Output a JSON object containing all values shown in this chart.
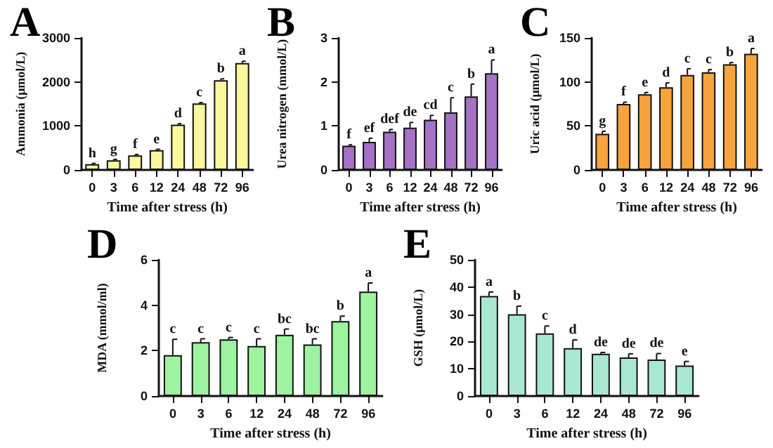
{
  "chart_data": [
    {
      "type": "bar",
      "title": "A",
      "xlabel": "Time after stress (h)",
      "ylabel": "Ammonia (μmol/L)",
      "categories": [
        "0",
        "3",
        "6",
        "12",
        "24",
        "48",
        "72",
        "96"
      ],
      "values": [
        130,
        220,
        330,
        450,
        1030,
        1510,
        2040,
        2430
      ],
      "errors": [
        [
          130,
          150
        ],
        [
          220,
          240
        ],
        [
          330,
          350
        ],
        [
          450,
          470
        ],
        [
          1030,
          1050
        ],
        [
          1510,
          1530
        ],
        [
          2040,
          2070
        ],
        [
          2430,
          2470
        ]
      ],
      "color": "#fbf89c",
      "ylim": [
        0,
        3000
      ],
      "yticks": [
        0,
        1000,
        2000,
        3000
      ],
      "annotations": [
        {
          "text": "h",
          "x": "0",
          "y": 150
        },
        {
          "text": "g",
          "x": "3",
          "y": 240
        },
        {
          "text": "f",
          "x": "6",
          "y": 350
        },
        {
          "text": "e",
          "x": "12",
          "y": 470
        },
        {
          "text": "d",
          "x": "24",
          "y": 1050
        },
        {
          "text": "c",
          "x": "48",
          "y": 1530
        },
        {
          "text": "b",
          "x": "72",
          "y": 2070
        },
        {
          "text": "a",
          "x": "96",
          "y": 2470
        }
      ]
    },
    {
      "type": "bar",
      "title": "B",
      "xlabel": "Time after stress (h)",
      "ylabel": "Urea nitrogen (mmol/L)",
      "categories": [
        "0",
        "3",
        "6",
        "12",
        "24",
        "48",
        "72",
        "96"
      ],
      "values": [
        0.55,
        0.64,
        0.87,
        0.96,
        1.14,
        1.31,
        1.67,
        2.2
      ],
      "errors": [
        [
          0.55,
          0.57
        ],
        [
          0.64,
          0.72
        ],
        [
          0.87,
          0.92
        ],
        [
          0.96,
          1.08
        ],
        [
          1.14,
          1.24
        ],
        [
          1.31,
          1.64
        ],
        [
          1.67,
          1.95
        ],
        [
          2.2,
          2.5
        ]
      ],
      "color": "#a572c4",
      "ylim": [
        0,
        3
      ],
      "yticks": [
        0,
        1,
        2,
        3
      ],
      "annotations": [
        {
          "text": "f",
          "x": "0",
          "y": 0.57
        },
        {
          "text": "ef",
          "x": "3",
          "y": 0.72
        },
        {
          "text": "def",
          "x": "6",
          "y": 0.92
        },
        {
          "text": "de",
          "x": "12",
          "y": 1.08
        },
        {
          "text": "cd",
          "x": "24",
          "y": 1.24
        },
        {
          "text": "c",
          "x": "48",
          "y": 1.64
        },
        {
          "text": "b",
          "x": "72",
          "y": 1.95
        },
        {
          "text": "a",
          "x": "96",
          "y": 2.5
        }
      ]
    },
    {
      "type": "bar",
      "title": "C",
      "xlabel": "Time after stress (h)",
      "ylabel": "Uric acid (μmol/L)",
      "categories": [
        "0",
        "3",
        "6",
        "12",
        "24",
        "48",
        "72",
        "96"
      ],
      "values": [
        41,
        75,
        86,
        94,
        108,
        111,
        120,
        132
      ],
      "errors": [
        [
          41,
          44
        ],
        [
          75,
          77
        ],
        [
          86,
          88
        ],
        [
          94,
          99
        ],
        [
          108,
          115
        ],
        [
          111,
          114
        ],
        [
          120,
          122
        ],
        [
          132,
          138
        ]
      ],
      "color": "#f9a33b",
      "ylim": [
        0,
        150
      ],
      "yticks": [
        0,
        50,
        100,
        150
      ],
      "annotations": [
        {
          "text": "g",
          "x": "0",
          "y": 44
        },
        {
          "text": "f",
          "x": "3",
          "y": 77
        },
        {
          "text": "e",
          "x": "6",
          "y": 88
        },
        {
          "text": "d",
          "x": "12",
          "y": 99
        },
        {
          "text": "c",
          "x": "24",
          "y": 115
        },
        {
          "text": "c",
          "x": "48",
          "y": 114
        },
        {
          "text": "b",
          "x": "72",
          "y": 122
        },
        {
          "text": "a",
          "x": "96",
          "y": 138
        }
      ]
    },
    {
      "type": "bar",
      "title": "D",
      "xlabel": "Time after stress (h)",
      "ylabel": "MDA (mmol/ml)",
      "categories": [
        "0",
        "3",
        "6",
        "12",
        "24",
        "48",
        "72",
        "96"
      ],
      "values": [
        1.8,
        2.37,
        2.5,
        2.2,
        2.7,
        2.27,
        3.3,
        4.6
      ],
      "errors": [
        [
          1.8,
          2.5
        ],
        [
          2.37,
          2.52
        ],
        [
          2.5,
          2.58
        ],
        [
          2.2,
          2.52
        ],
        [
          2.7,
          2.95
        ],
        [
          2.27,
          2.52
        ],
        [
          3.3,
          3.52
        ],
        [
          4.6,
          4.98
        ]
      ],
      "color": "#9ef3a0",
      "ylim": [
        0,
        6
      ],
      "yticks": [
        0,
        2,
        4,
        6
      ],
      "annotations": [
        {
          "text": "c",
          "x": "0",
          "y": 2.5
        },
        {
          "text": "c",
          "x": "3",
          "y": 2.52
        },
        {
          "text": "c",
          "x": "6",
          "y": 2.58
        },
        {
          "text": "c",
          "x": "12",
          "y": 2.52
        },
        {
          "text": "bc",
          "x": "24",
          "y": 2.95
        },
        {
          "text": "bc",
          "x": "48",
          "y": 2.52
        },
        {
          "text": "b",
          "x": "72",
          "y": 3.52
        },
        {
          "text": "a",
          "x": "96",
          "y": 4.98
        }
      ]
    },
    {
      "type": "bar",
      "title": "E",
      "xlabel": "Time after stress (h)",
      "ylabel": "GSH (μmol/L)",
      "categories": [
        "0",
        "3",
        "6",
        "12",
        "24",
        "48",
        "72",
        "96"
      ],
      "values": [
        36.7,
        30,
        23,
        17.6,
        15.5,
        14.2,
        13.4,
        11.2
      ],
      "errors": [
        [
          36.7,
          38.2
        ],
        [
          30,
          33
        ],
        [
          23,
          25.7
        ],
        [
          17.6,
          20.6
        ],
        [
          15.5,
          16
        ],
        [
          14.2,
          15.5
        ],
        [
          13.4,
          15.6
        ],
        [
          11.2,
          12.7
        ]
      ],
      "color": "#a8e8d0",
      "ylim": [
        0,
        50
      ],
      "yticks": [
        0,
        10,
        20,
        30,
        40,
        50
      ],
      "annotations": [
        {
          "text": "a",
          "x": "0",
          "y": 38.2
        },
        {
          "text": "b",
          "x": "3",
          "y": 33
        },
        {
          "text": "c",
          "x": "6",
          "y": 25.7
        },
        {
          "text": "d",
          "x": "12",
          "y": 20.6
        },
        {
          "text": "de",
          "x": "24",
          "y": 16
        },
        {
          "text": "de",
          "x": "48",
          "y": 15.5
        },
        {
          "text": "de",
          "x": "72",
          "y": 15.6
        },
        {
          "text": "e",
          "x": "96",
          "y": 12.7
        }
      ]
    }
  ]
}
